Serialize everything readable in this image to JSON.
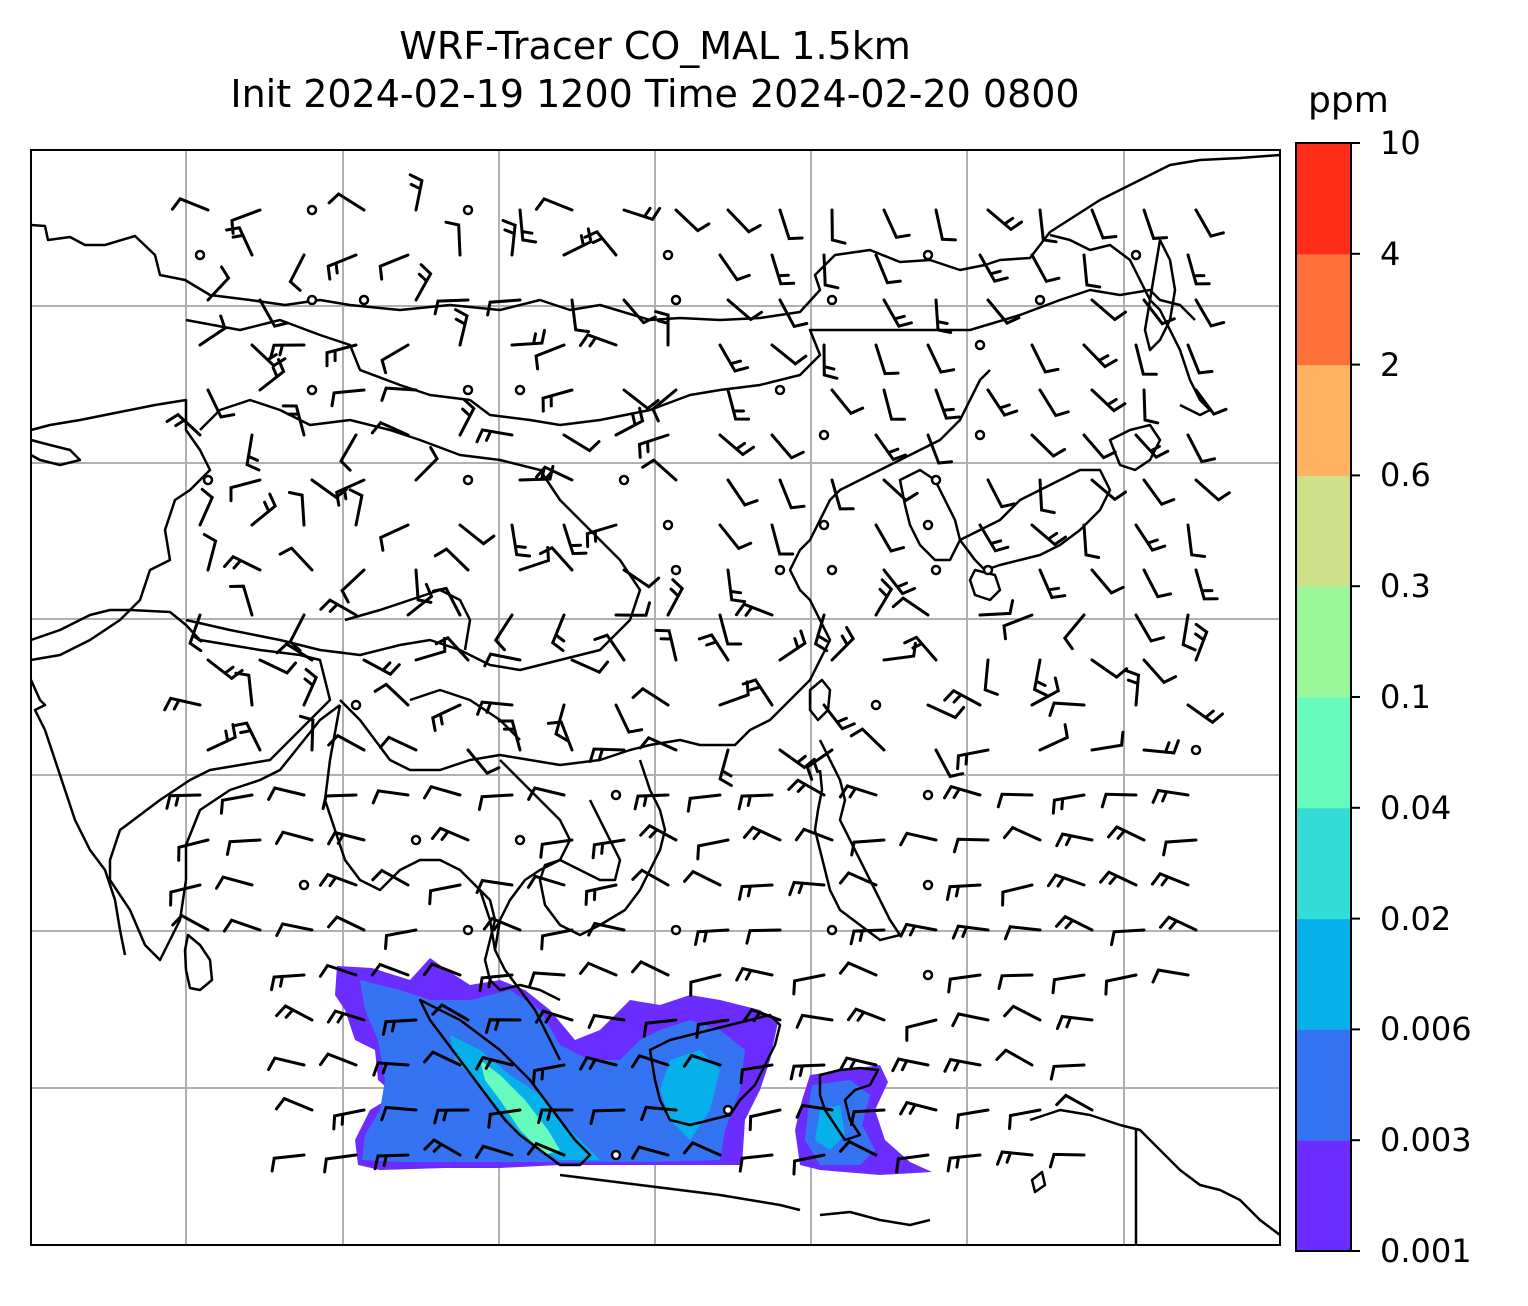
{
  "title": {
    "line1": "WRF-Tracer CO_MAL 1.5km",
    "line2": "Init 2024-02-19 1200 Time 2024-02-20 0800"
  },
  "colorbar": {
    "unit": "ppm",
    "ticks": [
      "0.001",
      "0.003",
      "0.006",
      "0.02",
      "0.04",
      "0.1",
      "0.3",
      "0.6",
      "2",
      "4",
      "10"
    ],
    "colors": [
      "#6a2cff",
      "#3474f2",
      "#06b0ea",
      "#33dcd4",
      "#66fbbd",
      "#9af89a",
      "#cfe08a",
      "#ffb260",
      "#ff7039",
      "#ff2c19"
    ]
  },
  "map": {
    "gridline_color": "#b0b0b0",
    "coastline_color": "#000000",
    "plume_colors": {
      "low": "#6a2cff",
      "mid": "#3474f2",
      "high": "#06b0ea",
      "peak": "#66fbbd"
    }
  }
}
